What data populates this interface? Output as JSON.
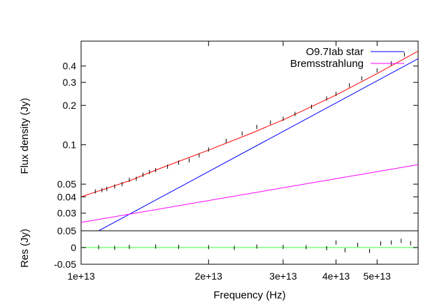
{
  "chart_data": [
    {
      "type": "line",
      "panel": "main",
      "xscale": "log",
      "yscale": "log",
      "xlabel": "",
      "ylabel": "Flux density (Jy)",
      "xlim": [
        10000000000000.0,
        62500000000000.0
      ],
      "ylim": [
        0.022,
        0.62
      ],
      "yticks": [
        0.03,
        0.04,
        0.05,
        0.1,
        0.2,
        0.3,
        0.4
      ],
      "yticklabels": [
        "0.03",
        "0.04",
        "0.05",
        "0.1",
        "0.2",
        "0.3",
        "0.4"
      ],
      "grid": false,
      "legend_position": "top-right",
      "series": [
        {
          "name": "O9.7Iab star",
          "color": "#0000ff",
          "style": "line",
          "x": [
            11000000000000.0,
            62500000000000.0
          ],
          "y": [
            0.022,
            0.455
          ]
        },
        {
          "name": "Bremsstrahlung",
          "color": "#ff00ff",
          "style": "line",
          "x": [
            10000000000000.0,
            62500000000000.0
          ],
          "y": [
            0.0255,
            0.0705
          ]
        },
        {
          "name": "",
          "color": "#ff0000",
          "style": "line",
          "x": [
            10000000000000.0,
            13000000000000.0,
            15000000000000.0,
            20000000000000.0,
            25000000000000.0,
            30000000000000.0,
            40000000000000.0,
            50000000000000.0,
            62500000000000.0
          ],
          "y": [
            0.04,
            0.053,
            0.064,
            0.091,
            0.121,
            0.155,
            0.24,
            0.35,
            0.52
          ]
        },
        {
          "name": "",
          "color": "#000000",
          "style": "data",
          "x": [
            10800000000000.0,
            11200000000000.0,
            11500000000000.0,
            12000000000000.0,
            12500000000000.0,
            13000000000000.0,
            13500000000000.0,
            14000000000000.0,
            14500000000000.0,
            15000000000000.0,
            16000000000000.0,
            17000000000000.0,
            18000000000000.0,
            19000000000000.0,
            20000000000000.0,
            22000000000000.0,
            24000000000000.0,
            26000000000000.0,
            28000000000000.0,
            30000000000000.0,
            32000000000000.0,
            35000000000000.0,
            38000000000000.0,
            40000000000000.0,
            43000000000000.0,
            46000000000000.0,
            50000000000000.0,
            54000000000000.0,
            58000000000000.0
          ],
          "y": [
            0.044,
            0.045,
            0.046,
            0.048,
            0.05,
            0.054,
            0.055,
            0.059,
            0.062,
            0.064,
            0.068,
            0.073,
            0.076,
            0.083,
            0.092,
            0.107,
            0.122,
            0.137,
            0.148,
            0.158,
            0.172,
            0.195,
            0.226,
            0.245,
            0.285,
            0.322,
            0.37,
            0.42,
            0.49
          ]
        }
      ]
    },
    {
      "type": "line",
      "panel": "residuals",
      "xscale": "log",
      "xlabel": "Frequency (Hz)",
      "ylabel": "Res (Jy)",
      "xlim": [
        10000000000000.0,
        62500000000000.0
      ],
      "ylim": [
        -0.05,
        0.05
      ],
      "xticks": [
        10000000000000.0,
        20000000000000.0,
        30000000000000.0,
        40000000000000.0,
        50000000000000.0
      ],
      "xticklabels": [
        "1e+13",
        "2e+13",
        "3e+13",
        "4e+13",
        "5e+13"
      ],
      "yticks": [
        -0.05,
        0,
        0.05
      ],
      "yticklabels": [
        "-0.05",
        "0",
        "0.05"
      ],
      "grid": false,
      "series": [
        {
          "name": "",
          "color": "#7fff7f",
          "style": "line",
          "x": [
            10000000000000.0,
            62500000000000.0
          ],
          "y": [
            0,
            0
          ]
        },
        {
          "name": "",
          "color": "#000000",
          "style": "data",
          "x": [
            11000000000000.0,
            12000000000000.0,
            13000000000000.0,
            15000000000000.0,
            17000000000000.0,
            20000000000000.0,
            23000000000000.0,
            26000000000000.0,
            30000000000000.0,
            34000000000000.0,
            38000000000000.0,
            40000000000000.0,
            42000000000000.0,
            45000000000000.0,
            48000000000000.0,
            51000000000000.0,
            54000000000000.0,
            57000000000000.0,
            60000000000000.0
          ],
          "y": [
            0.001,
            -0.001,
            0.002,
            0.003,
            0.002,
            0.001,
            -0.001,
            0.003,
            0.002,
            0.001,
            -0.002,
            0.015,
            -0.008,
            0.008,
            -0.01,
            0.012,
            0.015,
            0.02,
            0.013
          ]
        }
      ]
    }
  ]
}
